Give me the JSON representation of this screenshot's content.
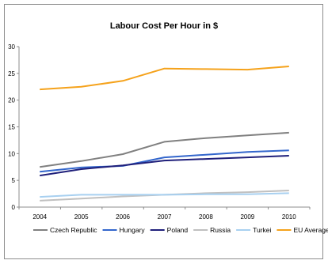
{
  "chart_data": {
    "type": "line",
    "title": "Labour Cost Per Hour in $",
    "xlabel": "",
    "ylabel": "",
    "categories": [
      "2004",
      "2005",
      "2006",
      "2007",
      "2008",
      "2009",
      "2010"
    ],
    "ylim": [
      0,
      30
    ],
    "yticks": [
      0,
      5,
      10,
      15,
      20,
      25,
      30
    ],
    "grid": false,
    "legend_position": "bottom",
    "series": [
      {
        "name": "Czech Republic",
        "color": "#808080",
        "values": [
          7.5,
          8.6,
          9.9,
          12.2,
          12.9,
          13.4,
          13.9
        ]
      },
      {
        "name": "Hungary",
        "color": "#3366cc",
        "values": [
          6.6,
          7.4,
          7.7,
          9.3,
          9.8,
          10.3,
          10.6
        ]
      },
      {
        "name": "Poland",
        "color": "#1f1f7a",
        "values": [
          5.9,
          7.1,
          7.8,
          8.7,
          9.0,
          9.3,
          9.6
        ]
      },
      {
        "name": "Russia",
        "color": "#c0c0c0",
        "values": [
          1.2,
          1.6,
          2.0,
          2.3,
          2.6,
          2.8,
          3.1
        ]
      },
      {
        "name": "Turkei",
        "color": "#a8d0f0",
        "values": [
          1.9,
          2.3,
          2.3,
          2.3,
          2.4,
          2.4,
          2.6
        ]
      },
      {
        "name": "EU Average",
        "color": "#f5a21b",
        "values": [
          22.0,
          22.5,
          23.6,
          25.9,
          25.8,
          25.7,
          26.3
        ]
      }
    ]
  }
}
